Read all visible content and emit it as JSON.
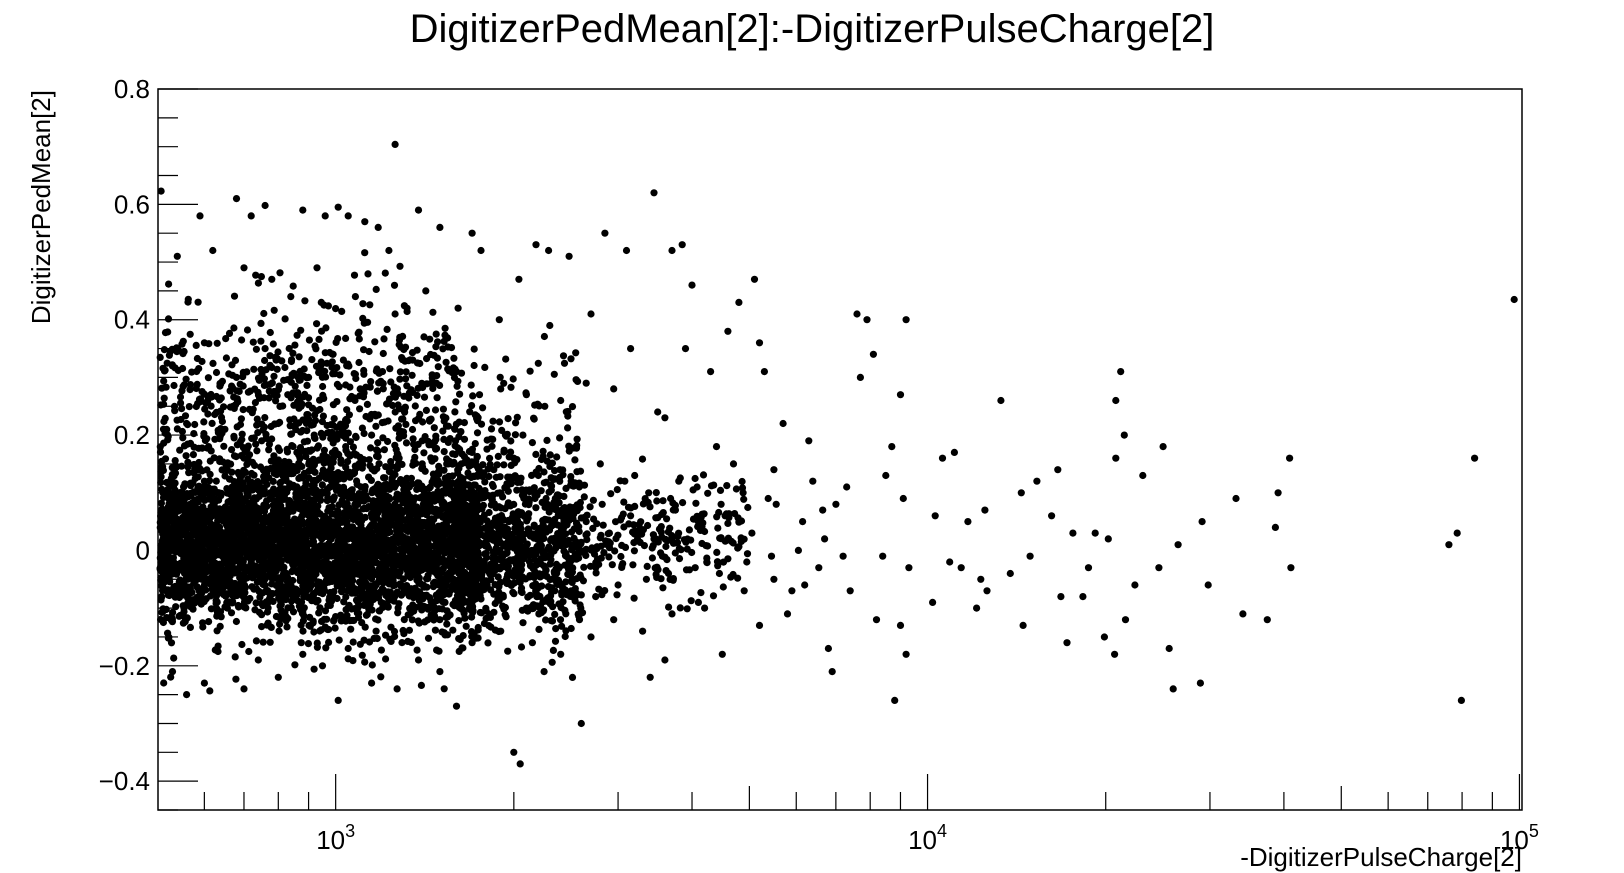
{
  "chart_data": {
    "type": "scatter",
    "title": "DigitizerPedMean[2]:-DigitizerPulseCharge[2]",
    "xlabel": "-DigitizerPulseCharge[2]",
    "ylabel": "DigitizerPedMean[2]",
    "x_scale": "log",
    "xlim": [
      501,
      101000
    ],
    "ylim": [
      -0.45,
      0.8
    ],
    "x_tick_labels": [
      {
        "value": 1000,
        "base": "10",
        "exp": "3"
      },
      {
        "value": 10000,
        "base": "10",
        "exp": "4"
      },
      {
        "value": 100000,
        "base": "10",
        "exp": "5"
      }
    ],
    "y_tick_labels": [
      {
        "value": 0.8,
        "label": "0.8"
      },
      {
        "value": 0.6,
        "label": "0.6"
      },
      {
        "value": 0.4,
        "label": "0.4"
      },
      {
        "value": 0.2,
        "label": "0.2"
      },
      {
        "value": 0,
        "label": "0"
      },
      {
        "value": -0.2,
        "label": "−0.2"
      },
      {
        "value": -0.4,
        "label": "−0.4"
      }
    ],
    "grid": false,
    "marker_color": "#000000",
    "points": [
      [
        507,
        0.623
      ],
      [
        590,
        0.58
      ],
      [
        680,
        0.61
      ],
      [
        720,
        0.58
      ],
      [
        760,
        0.598
      ],
      [
        880,
        0.59
      ],
      [
        960,
        0.58
      ],
      [
        1010,
        0.595
      ],
      [
        1050,
        0.58
      ],
      [
        1120,
        0.57
      ],
      [
        1180,
        0.56
      ],
      [
        1260,
        0.704
      ],
      [
        1380,
        0.59
      ],
      [
        1500,
        0.56
      ],
      [
        1700,
        0.55
      ],
      [
        540,
        0.51
      ],
      [
        620,
        0.52
      ],
      [
        700,
        0.49
      ],
      [
        780,
        0.47
      ],
      [
        840,
        0.44
      ],
      [
        930,
        0.49
      ],
      [
        1080,
        0.44
      ],
      [
        1230,
        0.52
      ],
      [
        1420,
        0.45
      ],
      [
        1760,
        0.52
      ],
      [
        2040,
        0.47
      ],
      [
        2180,
        0.53
      ],
      [
        2290,
        0.52
      ],
      [
        2480,
        0.51
      ],
      [
        2850,
        0.55
      ],
      [
        3100,
        0.52
      ],
      [
        3450,
        0.62
      ],
      [
        3700,
        0.52
      ],
      [
        4000,
        0.46
      ],
      [
        3850,
        0.53
      ],
      [
        4800,
        0.43
      ],
      [
        5100,
        0.47
      ],
      [
        7600,
        0.41
      ],
      [
        7900,
        0.4
      ],
      [
        9200,
        0.4
      ],
      [
        98000,
        0.435
      ],
      [
        1260,
        0.41
      ],
      [
        1320,
        0.42
      ],
      [
        1610,
        0.42
      ],
      [
        1890,
        0.4
      ],
      [
        2300,
        0.39
      ],
      [
        2700,
        0.41
      ],
      [
        3150,
        0.35
      ],
      [
        3900,
        0.35
      ],
      [
        4300,
        0.31
      ],
      [
        4600,
        0.38
      ],
      [
        5200,
        0.36
      ],
      [
        5300,
        0.31
      ],
      [
        7700,
        0.3
      ],
      [
        8100,
        0.34
      ],
      [
        530,
        0.32
      ],
      [
        600,
        0.36
      ],
      [
        680,
        0.3
      ],
      [
        760,
        0.35
      ],
      [
        830,
        0.27
      ],
      [
        900,
        0.3
      ],
      [
        990,
        0.34
      ],
      [
        1100,
        0.28
      ],
      [
        1200,
        0.31
      ],
      [
        1350,
        0.33
      ],
      [
        1480,
        0.29
      ],
      [
        1600,
        0.31
      ],
      [
        1750,
        0.27
      ],
      [
        1900,
        0.28
      ],
      [
        2100,
        0.27
      ],
      [
        2400,
        0.26
      ],
      [
        2650,
        0.29
      ],
      [
        2950,
        0.28
      ],
      [
        3500,
        0.24
      ],
      [
        3600,
        0.23
      ],
      [
        4400,
        0.18
      ],
      [
        5700,
        0.22
      ],
      [
        6300,
        0.19
      ],
      [
        8700,
        0.18
      ],
      [
        9000,
        0.27
      ],
      [
        13300,
        0.26
      ],
      [
        20800,
        0.26
      ],
      [
        21200,
        0.31
      ],
      [
        11100,
        0.17
      ],
      [
        10600,
        0.16
      ],
      [
        15300,
        0.12
      ],
      [
        16600,
        0.14
      ],
      [
        20800,
        0.16
      ],
      [
        21500,
        0.2
      ],
      [
        23100,
        0.13
      ],
      [
        25000,
        0.18
      ],
      [
        39100,
        0.1
      ],
      [
        40900,
        0.16
      ],
      [
        84000,
        0.16
      ],
      [
        520,
        0.2
      ],
      [
        560,
        0.22
      ],
      [
        610,
        0.18
      ],
      [
        650,
        0.21
      ],
      [
        700,
        0.16
      ],
      [
        750,
        0.19
      ],
      [
        800,
        0.22
      ],
      [
        860,
        0.17
      ],
      [
        920,
        0.2
      ],
      [
        980,
        0.15
      ],
      [
        1040,
        0.18
      ],
      [
        1150,
        0.2
      ],
      [
        1280,
        0.16
      ],
      [
        1400,
        0.19
      ],
      [
        1550,
        0.15
      ],
      [
        1700,
        0.17
      ],
      [
        1850,
        0.14
      ],
      [
        2000,
        0.16
      ],
      [
        2200,
        0.13
      ],
      [
        2500,
        0.12
      ],
      [
        2800,
        0.15
      ],
      [
        3200,
        0.13
      ],
      [
        3800,
        0.12
      ],
      [
        4700,
        0.15
      ],
      [
        5500,
        0.14
      ],
      [
        6400,
        0.12
      ],
      [
        7300,
        0.11
      ],
      [
        8500,
        0.13
      ],
      [
        7000,
        0.08
      ],
      [
        9100,
        0.09
      ],
      [
        10300,
        0.06
      ],
      [
        11700,
        0.05
      ],
      [
        12500,
        0.07
      ],
      [
        14400,
        0.1
      ],
      [
        16200,
        0.06
      ],
      [
        17600,
        0.03
      ],
      [
        19200,
        0.03
      ],
      [
        20200,
        0.02
      ],
      [
        26500,
        0.01
      ],
      [
        29100,
        0.05
      ],
      [
        33200,
        0.09
      ],
      [
        38700,
        0.04
      ],
      [
        76000,
        0.01
      ],
      [
        78500,
        0.03
      ],
      [
        6700,
        0.02
      ],
      [
        7200,
        -0.01
      ],
      [
        8400,
        -0.01
      ],
      [
        9300,
        -0.03
      ],
      [
        10900,
        -0.02
      ],
      [
        11400,
        -0.03
      ],
      [
        12300,
        -0.05
      ],
      [
        13800,
        -0.04
      ],
      [
        14900,
        -0.01
      ],
      [
        16800,
        -0.08
      ],
      [
        18700,
        -0.03
      ],
      [
        22400,
        -0.06
      ],
      [
        24600,
        -0.03
      ],
      [
        29800,
        -0.06
      ],
      [
        34100,
        -0.11
      ],
      [
        41100,
        -0.03
      ],
      [
        7400,
        -0.07
      ],
      [
        8200,
        -0.12
      ],
      [
        9000,
        -0.13
      ],
      [
        10200,
        -0.09
      ],
      [
        12100,
        -0.1
      ],
      [
        14500,
        -0.13
      ],
      [
        17200,
        -0.16
      ],
      [
        19900,
        -0.15
      ],
      [
        21600,
        -0.12
      ],
      [
        25600,
        -0.17
      ],
      [
        37500,
        -0.12
      ],
      [
        6800,
        -0.17
      ],
      [
        6900,
        -0.21
      ],
      [
        8800,
        -0.26
      ],
      [
        9200,
        -0.18
      ],
      [
        12600,
        -0.07
      ],
      [
        18300,
        -0.08
      ],
      [
        20700,
        -0.18
      ],
      [
        26000,
        -0.24
      ],
      [
        28900,
        -0.23
      ],
      [
        79800,
        -0.26
      ],
      [
        1010,
        -0.26
      ],
      [
        1600,
        -0.27
      ],
      [
        2000,
        -0.35
      ],
      [
        2050,
        -0.37
      ],
      [
        2600,
        -0.3
      ],
      [
        2250,
        -0.21
      ],
      [
        3400,
        -0.22
      ],
      [
        3600,
        -0.19
      ],
      [
        4200,
        -0.1
      ],
      [
        4500,
        -0.18
      ],
      [
        5200,
        -0.13
      ],
      [
        5800,
        -0.11
      ],
      [
        5900,
        -0.07
      ],
      [
        530,
        -0.21
      ],
      [
        560,
        -0.25
      ],
      [
        600,
        -0.23
      ],
      [
        700,
        -0.24
      ],
      [
        740,
        -0.19
      ],
      [
        800,
        -0.22
      ],
      [
        880,
        -0.18
      ],
      [
        950,
        -0.2
      ],
      [
        1050,
        -0.17
      ],
      [
        1150,
        -0.23
      ],
      [
        1270,
        -0.24
      ],
      [
        1380,
        -0.19
      ],
      [
        1500,
        -0.21
      ],
      [
        1700,
        -0.16
      ],
      [
        1900,
        -0.14
      ],
      [
        2150,
        -0.16
      ],
      [
        2400,
        -0.18
      ],
      [
        2700,
        -0.15
      ],
      [
        2950,
        -0.12
      ],
      [
        3300,
        -0.14
      ],
      [
        3700,
        -0.11
      ],
      [
        4100,
        -0.09
      ],
      [
        4900,
        -0.07
      ],
      [
        5500,
        -0.05
      ],
      [
        6200,
        -0.06
      ],
      [
        2100,
        -0.1
      ],
      [
        2300,
        -0.09
      ],
      [
        2500,
        -0.07
      ],
      [
        2750,
        -0.08
      ],
      [
        3000,
        -0.06
      ],
      [
        3350,
        -0.05
      ],
      [
        3650,
        -0.04
      ],
      [
        4050,
        -0.03
      ],
      [
        4450,
        -0.04
      ],
      [
        4950,
        -0.02
      ],
      [
        5450,
        -0.01
      ],
      [
        6050,
        0.0
      ],
      [
        6550,
        -0.03
      ],
      [
        2050,
        0.02
      ],
      [
        2250,
        0.04
      ],
      [
        2450,
        0.01
      ],
      [
        2650,
        0.05
      ],
      [
        2900,
        0.03
      ],
      [
        3150,
        0.06
      ],
      [
        3450,
        0.02
      ],
      [
        3750,
        0.07
      ],
      [
        4150,
        0.04
      ],
      [
        4550,
        0.06
      ],
      [
        5050,
        0.03
      ],
      [
        5550,
        0.08
      ],
      [
        6150,
        0.05
      ],
      [
        6650,
        0.07
      ],
      [
        2080,
        0.1
      ],
      [
        2350,
        0.09
      ],
      [
        2580,
        0.11
      ],
      [
        2820,
        0.08
      ],
      [
        3080,
        0.12
      ],
      [
        3380,
        0.1
      ],
      [
        3680,
        0.09
      ],
      [
        4080,
        0.11
      ],
      [
        4480,
        0.08
      ],
      [
        4880,
        0.1
      ],
      [
        5380,
        0.09
      ]
    ],
    "dense_regions": [
      {
        "x_min": 505,
        "x_max": 1750,
        "y_center": 0.0,
        "y_spread": 0.12,
        "count": 3200
      },
      {
        "x_min": 505,
        "x_max": 1750,
        "y_center": 0.1,
        "y_spread": 0.2,
        "count": 900
      },
      {
        "x_min": 505,
        "x_max": 1600,
        "y_center": 0.28,
        "y_spread": 0.14,
        "count": 450
      },
      {
        "x_min": 1600,
        "x_max": 2600,
        "y_center": 0.0,
        "y_spread": 0.12,
        "count": 700
      },
      {
        "x_min": 1600,
        "x_max": 2600,
        "y_center": 0.1,
        "y_spread": 0.2,
        "count": 230
      },
      {
        "x_min": 2600,
        "x_max": 5000,
        "y_center": 0.02,
        "y_spread": 0.09,
        "count": 230
      }
    ]
  }
}
